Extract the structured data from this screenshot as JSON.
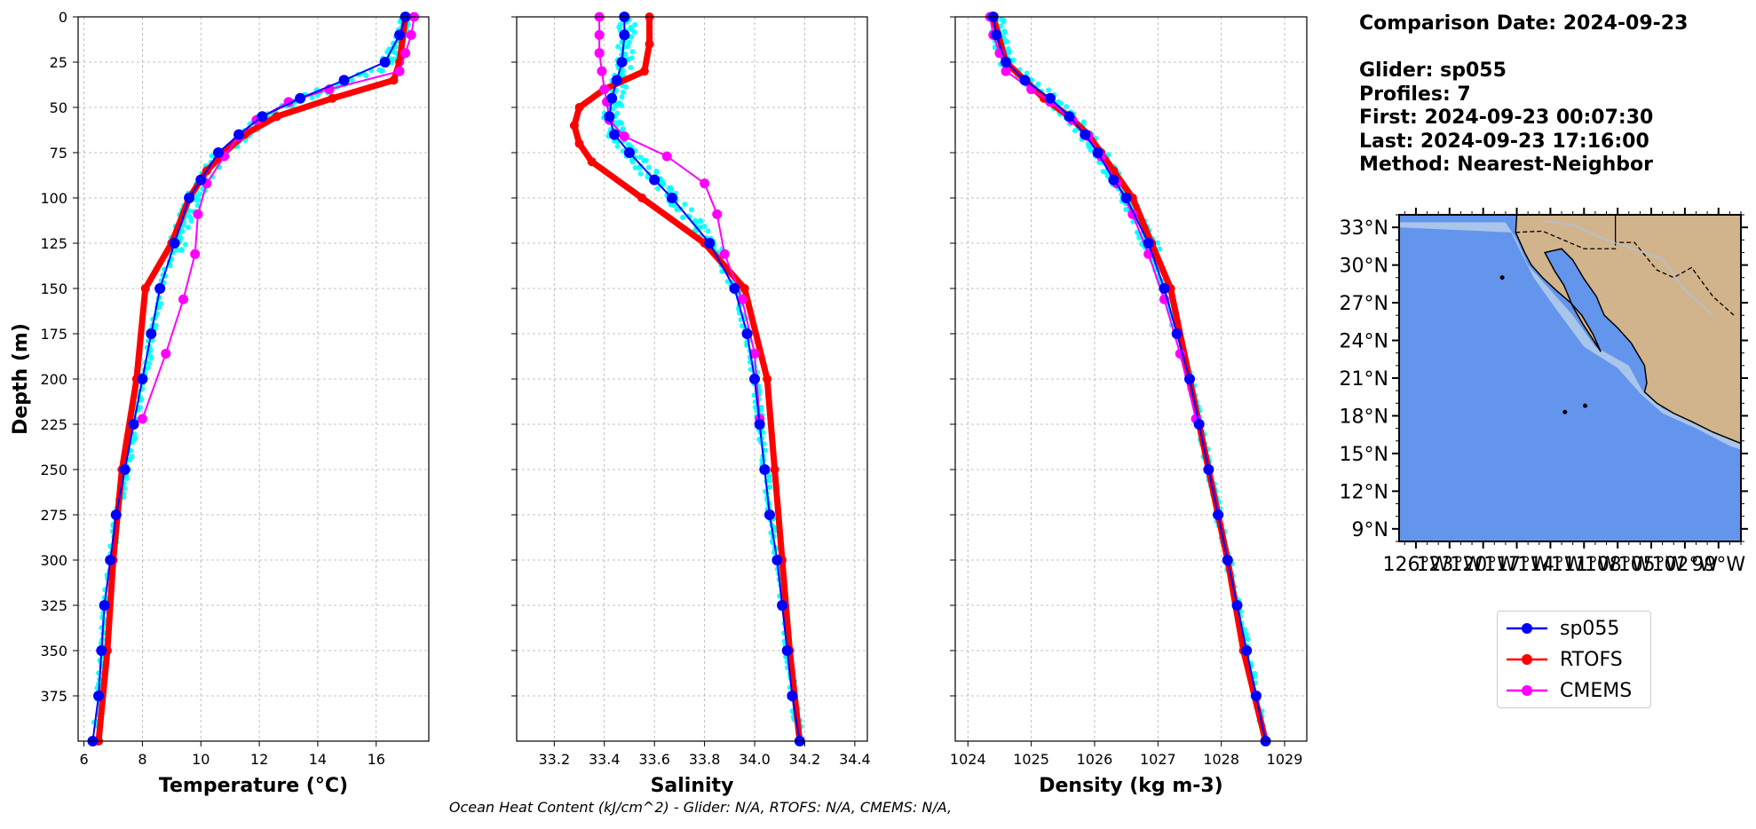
{
  "info": {
    "comparison_date": "Comparison Date: 2024-09-23",
    "glider": "Glider: sp055",
    "profiles": "Profiles: 7",
    "first": "First: 2024-09-23 00:07:30",
    "last": "Last: 2024-09-23 17:16:00",
    "method": "Method: Nearest-Neighbor"
  },
  "footer": "Ocean Heat Content (kJ/cm^2) - Glider: N/A,  RTOFS: N/A,  CMEMS: N/A,",
  "legend": [
    {
      "label": "sp055",
      "color": "#0000ff"
    },
    {
      "label": "RTOFS",
      "color": "#ff0000"
    },
    {
      "label": "CMEMS",
      "color": "#ff00ff"
    }
  ],
  "colors": {
    "glider_scatter": "#00ffff",
    "ocean": "#6495ed",
    "shelf": "#a9c5ea",
    "land": "#d2b48c"
  },
  "map": {
    "lat_ticks": [
      "33°N",
      "30°N",
      "27°N",
      "24°N",
      "21°N",
      "18°N",
      "15°N",
      "12°N",
      "9°N"
    ],
    "lon_ticks": [
      "126°W",
      "123°W",
      "120°W",
      "117°W",
      "114°W",
      "111°W",
      "108°W",
      "105°W",
      "102°W",
      "99°W"
    ]
  },
  "chart_data": [
    {
      "type": "line",
      "xlabel": "Temperature (°C)",
      "ylabel": "Depth (m)",
      "xlim": [
        5.8,
        17.8
      ],
      "ylim": [
        400,
        0
      ],
      "xticks": [
        6,
        8,
        10,
        12,
        14,
        16
      ],
      "yticks": [
        0,
        25,
        50,
        75,
        100,
        125,
        150,
        175,
        200,
        225,
        250,
        275,
        300,
        325,
        350,
        375
      ],
      "grid": true,
      "series": [
        {
          "name": "RTOFS",
          "depth": [
            0,
            25,
            35,
            45,
            55,
            65,
            75,
            85,
            100,
            125,
            150,
            200,
            250,
            300,
            350,
            400
          ],
          "values": [
            17.0,
            16.8,
            16.6,
            14.5,
            12.6,
            11.5,
            10.8,
            10.2,
            9.6,
            9.0,
            8.1,
            7.8,
            7.3,
            7.0,
            6.8,
            6.5
          ]
        },
        {
          "name": "sp055",
          "depth": [
            0,
            10,
            25,
            35,
            45,
            55,
            65,
            75,
            90,
            100,
            125,
            150,
            175,
            200,
            225,
            250,
            275,
            300,
            325,
            350,
            375,
            400
          ],
          "values": [
            17.0,
            16.8,
            16.3,
            14.9,
            13.4,
            12.1,
            11.3,
            10.6,
            10.0,
            9.6,
            9.1,
            8.6,
            8.3,
            8.0,
            7.7,
            7.4,
            7.1,
            6.9,
            6.7,
            6.6,
            6.5,
            6.3
          ]
        },
        {
          "name": "CMEMS",
          "depth": [
            0,
            10,
            20,
            30,
            40,
            47,
            57,
            66,
            77,
            92,
            109,
            131,
            156,
            186,
            222
          ],
          "values": [
            17.3,
            17.2,
            17.0,
            16.8,
            14.4,
            13.0,
            11.9,
            11.3,
            10.8,
            10.2,
            9.9,
            9.8,
            9.4,
            8.8,
            8.0
          ]
        }
      ]
    },
    {
      "type": "line",
      "xlabel": "Salinity",
      "ylabel": "",
      "xlim": [
        33.05,
        34.45
      ],
      "ylim": [
        400,
        0
      ],
      "xticks": [
        33.2,
        33.4,
        33.6,
        33.8,
        34.0,
        34.2,
        34.4
      ],
      "grid": true,
      "series": [
        {
          "name": "RTOFS",
          "depth": [
            0,
            15,
            30,
            40,
            50,
            60,
            70,
            80,
            100,
            125,
            150,
            200,
            250,
            300,
            350,
            400
          ],
          "values": [
            33.58,
            33.58,
            33.56,
            33.4,
            33.3,
            33.28,
            33.3,
            33.35,
            33.55,
            33.8,
            33.96,
            34.05,
            34.08,
            34.11,
            34.14,
            34.18
          ]
        },
        {
          "name": "sp055",
          "depth": [
            0,
            10,
            25,
            35,
            45,
            55,
            65,
            75,
            90,
            100,
            125,
            150,
            175,
            200,
            225,
            250,
            275,
            300,
            325,
            350,
            375,
            400
          ],
          "values": [
            33.48,
            33.48,
            33.47,
            33.45,
            33.43,
            33.42,
            33.44,
            33.5,
            33.6,
            33.67,
            33.82,
            33.92,
            33.97,
            34.0,
            34.02,
            34.04,
            34.06,
            34.09,
            34.11,
            34.13,
            34.15,
            34.18
          ]
        },
        {
          "name": "CMEMS",
          "depth": [
            0,
            10,
            20,
            30,
            40,
            47,
            57,
            66,
            77,
            92,
            109,
            131,
            156,
            186,
            222
          ],
          "values": [
            33.38,
            33.38,
            33.38,
            33.39,
            33.4,
            33.41,
            33.42,
            33.48,
            33.65,
            33.8,
            33.85,
            33.88,
            33.95,
            34.0,
            34.02
          ]
        }
      ]
    },
    {
      "type": "line",
      "xlabel": "Density (kg m-3)",
      "ylabel": "",
      "xlim": [
        1023.8,
        1029.35
      ],
      "ylim": [
        400,
        0
      ],
      "xticks": [
        1024,
        1025,
        1026,
        1027,
        1028,
        1029
      ],
      "grid": true,
      "series": [
        {
          "name": "RTOFS",
          "depth": [
            0,
            25,
            35,
            45,
            55,
            65,
            75,
            85,
            100,
            125,
            150,
            200,
            250,
            300,
            350,
            400
          ],
          "values": [
            1024.4,
            1024.6,
            1024.9,
            1025.2,
            1025.6,
            1025.9,
            1026.1,
            1026.3,
            1026.6,
            1026.9,
            1027.2,
            1027.5,
            1027.8,
            1028.1,
            1028.35,
            1028.7
          ]
        },
        {
          "name": "sp055",
          "depth": [
            0,
            10,
            25,
            35,
            45,
            55,
            65,
            75,
            90,
            100,
            125,
            150,
            175,
            200,
            225,
            250,
            275,
            300,
            325,
            350,
            375,
            400
          ],
          "values": [
            1024.4,
            1024.45,
            1024.6,
            1024.9,
            1025.3,
            1025.6,
            1025.85,
            1026.05,
            1026.3,
            1026.5,
            1026.85,
            1027.1,
            1027.3,
            1027.5,
            1027.65,
            1027.8,
            1027.95,
            1028.1,
            1028.25,
            1028.4,
            1028.55,
            1028.7
          ]
        },
        {
          "name": "CMEMS",
          "depth": [
            0,
            10,
            20,
            30,
            40,
            47,
            57,
            66,
            77,
            92,
            109,
            131,
            156,
            186,
            222
          ],
          "values": [
            1024.35,
            1024.4,
            1024.5,
            1024.6,
            1025.0,
            1025.3,
            1025.65,
            1025.9,
            1026.1,
            1026.35,
            1026.6,
            1026.85,
            1027.1,
            1027.35,
            1027.6
          ]
        }
      ]
    }
  ]
}
